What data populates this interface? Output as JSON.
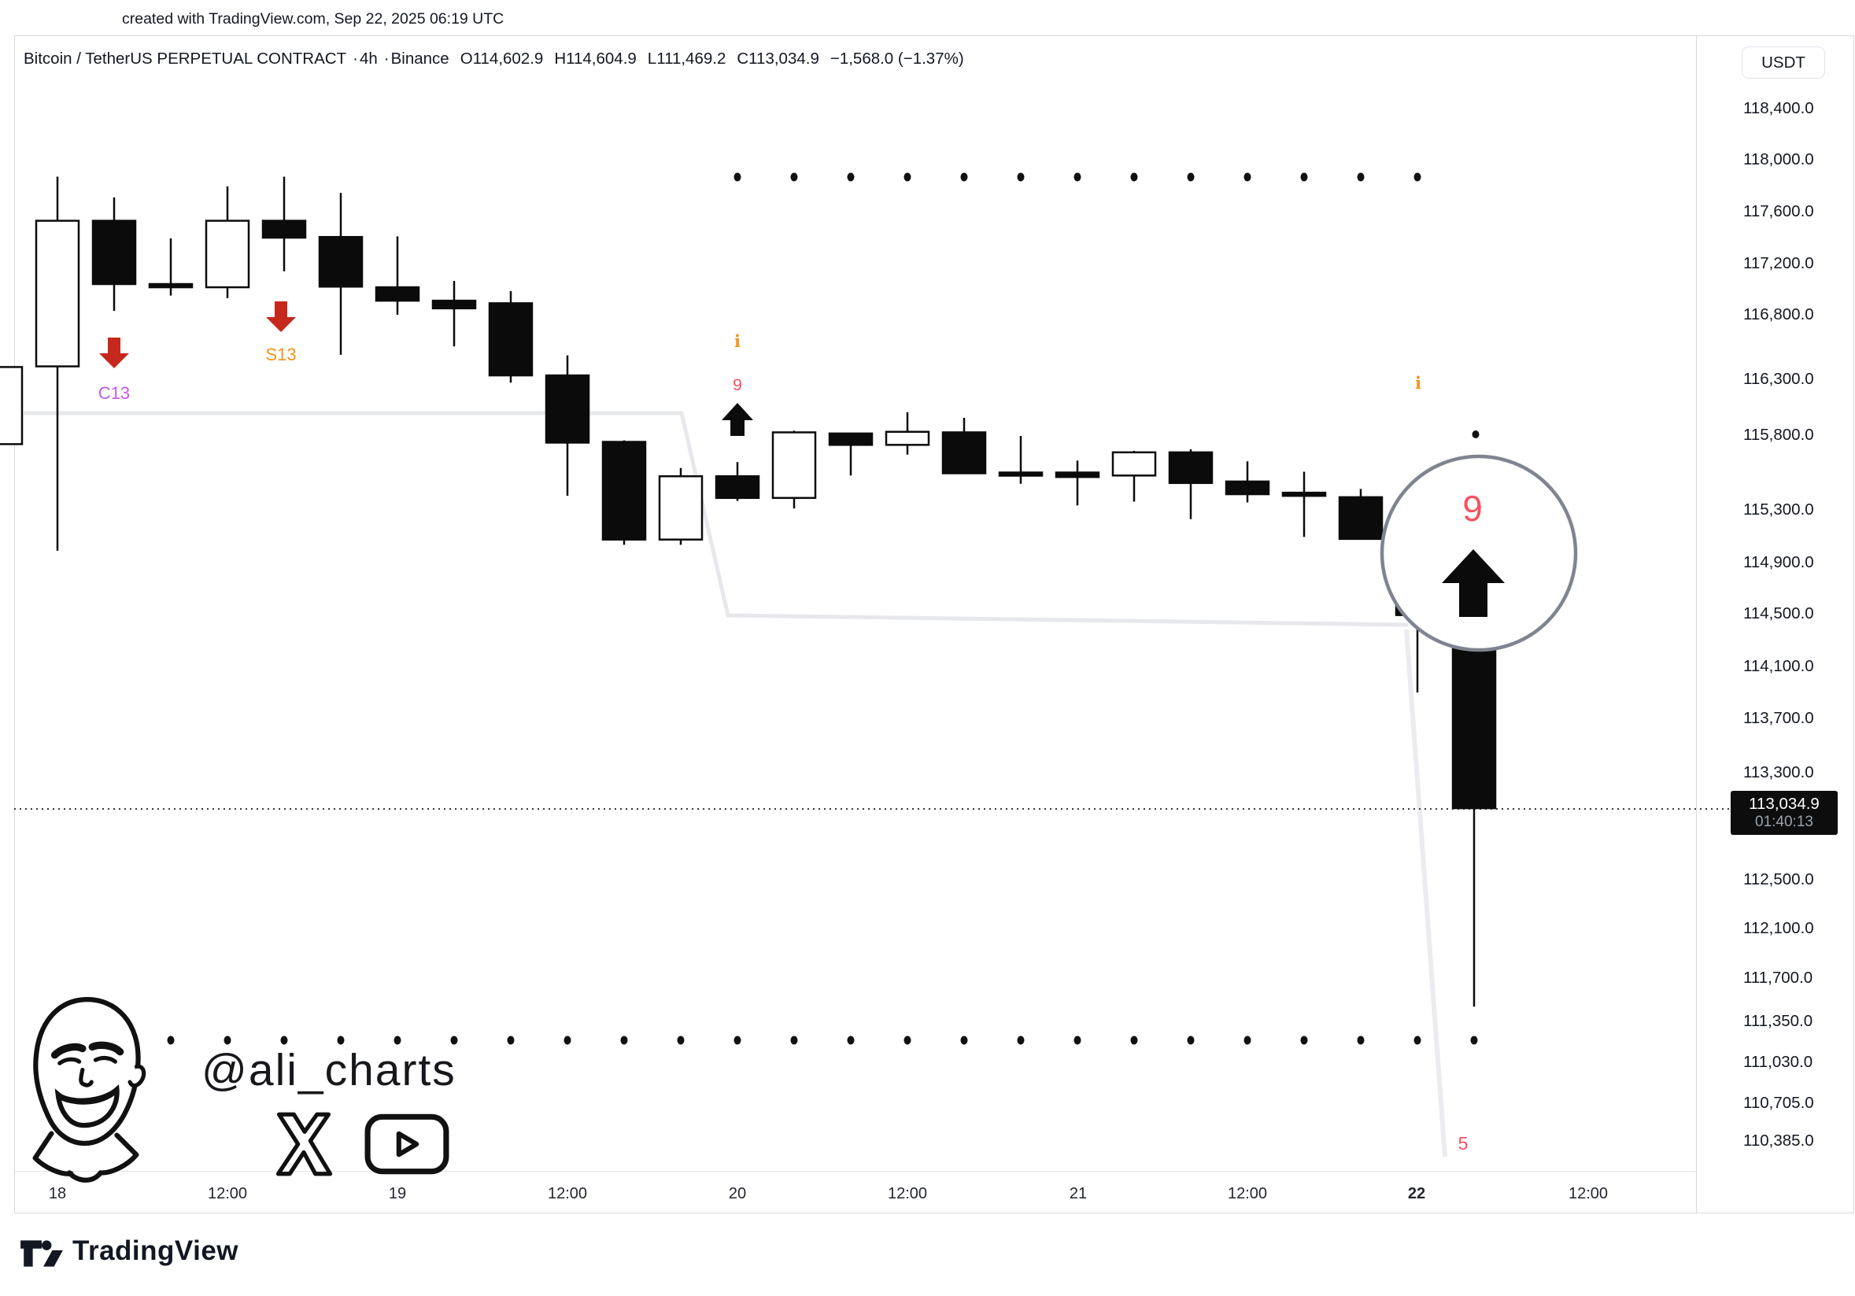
{
  "created_line": "created with TradingView.com, Sep 22, 2025 06:19 UTC",
  "header": {
    "symbol": "Bitcoin / TetherUS PERPETUAL CONTRACT",
    "sep1": "·",
    "interval": "4h",
    "sep2": "·",
    "exchange": "Binance",
    "open": "O114,602.9",
    "high": "H114,604.9",
    "low": "L111,469.2",
    "close": "C113,034.9",
    "change": "−1,568.0 (−1.37%)"
  },
  "currency_button": "USDT",
  "price_axis": [
    "118,400.0",
    "118,000.0",
    "117,600.0",
    "117,200.0",
    "116,800.0",
    "116,300.0",
    "115,800.0",
    "115,300.0",
    "114,900.0",
    "114,500.0",
    "114,100.0",
    "113,700.0",
    "113,300.0",
    "112,500.0",
    "112,100.0",
    "111,700.0",
    "111,350.0",
    "111,030.0",
    "110,705.0",
    "110,385.0"
  ],
  "price_label": {
    "price": "113,034.9",
    "countdown": "01:40:13"
  },
  "time_axis": [
    {
      "label": "18"
    },
    {
      "label": "12:00"
    },
    {
      "label": "19"
    },
    {
      "label": "12:00"
    },
    {
      "label": "20"
    },
    {
      "label": "12:00"
    },
    {
      "label": "21"
    },
    {
      "label": "12:00"
    },
    {
      "label": "22",
      "bold": true
    },
    {
      "label": "12:00"
    }
  ],
  "watermark": {
    "handle": "@ali_charts"
  },
  "footer_brand": "TradingView",
  "colors": {
    "arrow_red": "#c5281c",
    "count_red": "#f7525f",
    "info_orange": "#f7931a",
    "c13_purple": "#c359f1",
    "candle_black": "#0b0b0b",
    "trend_gray": "#e7e8ec",
    "label_bg": "#0d0d0d"
  },
  "chart_data": {
    "type": "candlestick",
    "title": "Bitcoin / TetherUS PERPETUAL CONTRACT · 4h · Binance",
    "ylabel": "price (USDT)",
    "y_axis_ticks": [
      118400,
      118000,
      117600,
      117200,
      116800,
      116300,
      115800,
      115300,
      114900,
      114500,
      114100,
      113700,
      113300,
      112500,
      112100,
      111700,
      111350,
      111030,
      110705,
      110385
    ],
    "x_axis_labels": [
      "18",
      "12:00",
      "19",
      "12:00",
      "20",
      "12:00",
      "21",
      "12:00",
      "22",
      "12:00"
    ],
    "current_bar": {
      "open": 114602.9,
      "high": 114604.9,
      "low": 111469.2,
      "close": 113034.9,
      "change": -1568.0,
      "change_pct": -1.37
    },
    "current_price_line": 113034.9,
    "candles": [
      {
        "time": "Sep 17 20:00",
        "open": 115740,
        "high": 116395,
        "low": 115740,
        "close": 116395,
        "partial": true
      },
      {
        "time": "Sep 18 00:00",
        "open": 116400,
        "high": 117870,
        "low": 114990,
        "close": 117530
      },
      {
        "time": "Sep 18 04:00",
        "open": 117530,
        "high": 117710,
        "low": 116830,
        "close": 117040
      },
      {
        "time": "Sep 18 08:00",
        "open": 117040,
        "high": 117395,
        "low": 116950,
        "close": 117015
      },
      {
        "time": "Sep 18 12:00",
        "open": 117015,
        "high": 117795,
        "low": 116930,
        "close": 117530
      },
      {
        "time": "Sep 18 16:00",
        "open": 117530,
        "high": 117870,
        "low": 117140,
        "close": 117400
      },
      {
        "time": "Sep 18 20:00",
        "open": 117405,
        "high": 117745,
        "low": 116490,
        "close": 117020
      },
      {
        "time": "Sep 19 00:00",
        "open": 117015,
        "high": 117410,
        "low": 116800,
        "close": 116910
      },
      {
        "time": "Sep 19 04:00",
        "open": 116910,
        "high": 117065,
        "low": 116555,
        "close": 116850
      },
      {
        "time": "Sep 19 08:00",
        "open": 116890,
        "high": 116985,
        "low": 116270,
        "close": 116330
      },
      {
        "time": "Sep 19 12:00",
        "open": 116330,
        "high": 116485,
        "low": 115395,
        "close": 115750
      },
      {
        "time": "Sep 19 16:00",
        "open": 115755,
        "high": 115765,
        "low": 115035,
        "close": 115075
      },
      {
        "time": "Sep 19 20:00",
        "open": 115075,
        "high": 115580,
        "low": 115035,
        "close": 115525
      },
      {
        "time": "Sep 20 00:00",
        "open": 115525,
        "high": 115620,
        "low": 115360,
        "close": 115380
      },
      {
        "time": "Sep 20 04:00",
        "open": 115380,
        "high": 115840,
        "low": 115310,
        "close": 115825
      },
      {
        "time": "Sep 20 08:00",
        "open": 115815,
        "high": 115820,
        "low": 115530,
        "close": 115735
      },
      {
        "time": "Sep 20 12:00",
        "open": 115735,
        "high": 116005,
        "low": 115670,
        "close": 115830
      },
      {
        "time": "Sep 20 16:00",
        "open": 115825,
        "high": 115955,
        "low": 115540,
        "close": 115545
      },
      {
        "time": "Sep 20 20:00",
        "open": 115550,
        "high": 115795,
        "low": 115475,
        "close": 115540
      },
      {
        "time": "Sep 21 00:00",
        "open": 115550,
        "high": 115630,
        "low": 115330,
        "close": 115520
      },
      {
        "time": "Sep 21 04:00",
        "open": 115530,
        "high": 115695,
        "low": 115355,
        "close": 115685
      },
      {
        "time": "Sep 21 08:00",
        "open": 115685,
        "high": 115705,
        "low": 115230,
        "close": 115480
      },
      {
        "time": "Sep 21 12:00",
        "open": 115490,
        "high": 115625,
        "low": 115350,
        "close": 115405
      },
      {
        "time": "Sep 21 16:00",
        "open": 115415,
        "high": 115555,
        "low": 115095,
        "close": 115410
      },
      {
        "time": "Sep 21 20:00",
        "open": 115385,
        "high": 115440,
        "low": 115075,
        "close": 115080
      },
      {
        "time": "Sep 22 00:00",
        "open": 115300,
        "high": 115315,
        "low": 113900,
        "close": 114490
      },
      {
        "time": "Sep 22 04:00",
        "open": 114602.9,
        "high": 114604.9,
        "low": 111469.2,
        "close": 113034.9,
        "current": true
      }
    ],
    "markers": [
      {
        "id": "c13",
        "kind": "red-down-arrow-label",
        "text": "C13",
        "candle_index": 2
      },
      {
        "id": "s13",
        "kind": "red-down-arrow-label",
        "text": "S13",
        "candle_index": 5
      },
      {
        "id": "setup9-mid",
        "kind": "up-arrow-count",
        "count_text": "9",
        "info_text": "i",
        "candle_index": 13
      },
      {
        "id": "info-right",
        "kind": "info",
        "text": "i",
        "candle_index": 25
      },
      {
        "id": "dot-right",
        "kind": "dot",
        "candle_index": 26
      },
      {
        "id": "magnifier",
        "kind": "circle-highlight",
        "count_text": "9",
        "candle_index": 26
      },
      {
        "id": "count5",
        "kind": "count",
        "text": "5",
        "candle_index": 26
      }
    ],
    "dot_rows": {
      "top": {
        "from_index": 13,
        "to_index": 25
      },
      "bottom": {
        "from_index": 1,
        "to_index": 26
      }
    },
    "legend_note": "grid off, dotted line marks last price 113,034.9"
  }
}
